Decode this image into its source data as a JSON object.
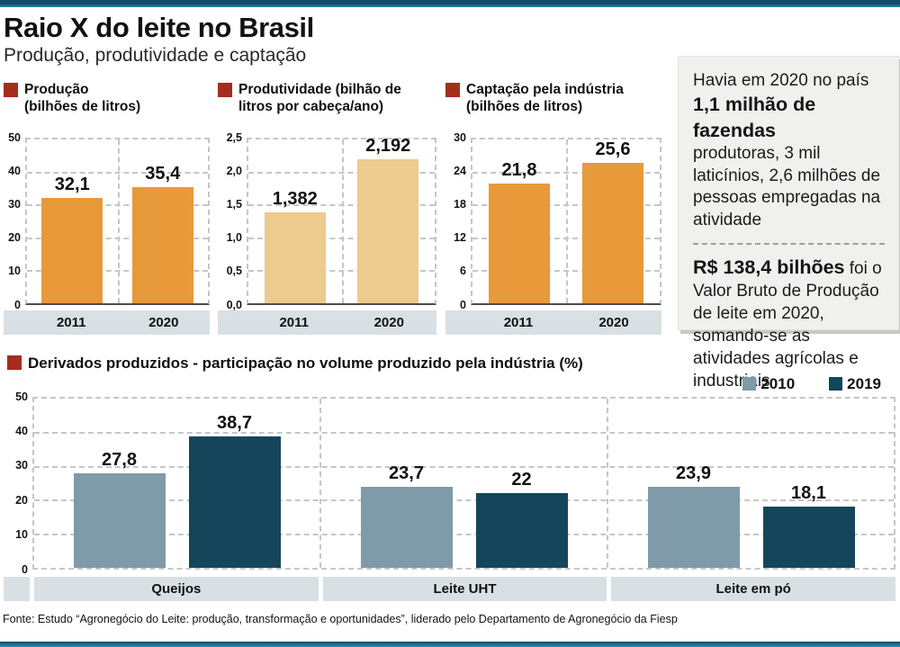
{
  "header": {
    "title": "Raio X do leite no Brasil",
    "subtitle": "Produção, produtividade e captação"
  },
  "colors": {
    "accent-red": "#a52d1d",
    "teal-dark": "#11506b",
    "teal-light": "#2d8fae",
    "band": "#d9e0e4",
    "grid": "#c3c7c9",
    "box-bg": "#f0f0ee",
    "orange": "#e8993a",
    "tan": "#edca8e",
    "slate-2010": "#7f9aa8",
    "navy-2019": "#15455b"
  },
  "chart_data": [
    {
      "type": "bar",
      "title": "Produção\n(bilhões de litros)",
      "categories": [
        "2011",
        "2020"
      ],
      "values": [
        32.1,
        35.4
      ],
      "value_labels": [
        "32,1",
        "35,4"
      ],
      "ylim": [
        0,
        50
      ],
      "yticks": [
        "50",
        "40",
        "30",
        "20",
        "10",
        "0"
      ],
      "bar_color": "#e8993a",
      "grid": true,
      "yaxis_width": 24
    },
    {
      "type": "bar",
      "title": "Produtividade (bilhão de\nlitros por cabeça/ano)",
      "categories": [
        "2011",
        "2020"
      ],
      "values": [
        1.382,
        2.192
      ],
      "value_labels": [
        "1,382",
        "2,192"
      ],
      "ylim": [
        0,
        2.5
      ],
      "yticks": [
        "2,5",
        "2,0",
        "1,5",
        "1,0",
        "0,5",
        "0,0"
      ],
      "bar_color": "#edca8e",
      "grid": true,
      "yaxis_width": 32
    },
    {
      "type": "bar",
      "title": "Captação pela indústria\n(bilhões de litros)",
      "categories": [
        "2011",
        "2020"
      ],
      "values": [
        21.8,
        25.6
      ],
      "value_labels": [
        "21,8",
        "25,6"
      ],
      "ylim": [
        0,
        30
      ],
      "yticks": [
        "30",
        "24",
        "18",
        "12",
        "6",
        "0"
      ],
      "bar_color": "#e8993a",
      "grid": true,
      "yaxis_width": 28
    },
    {
      "type": "bar",
      "title": "Derivados produzidos - participação no volume produzido pela indústria (%)",
      "categories": [
        "Queijos",
        "Leite UHT",
        "Leite em pó"
      ],
      "series": [
        {
          "name": "2010",
          "values": [
            27.8,
            23.7,
            23.9
          ],
          "labels": [
            "27,8",
            "23,7",
            "23,9"
          ],
          "color": "#7f9aa8"
        },
        {
          "name": "2019",
          "values": [
            38.7,
            22,
            18.1
          ],
          "labels": [
            "38,7",
            "22",
            "18,1"
          ],
          "color": "#15455b"
        }
      ],
      "ylim": [
        0,
        50
      ],
      "yticks": [
        "50",
        "40",
        "30",
        "20",
        "10",
        "0"
      ],
      "legend_position": "top-right",
      "grid": true
    }
  ],
  "sidebar": {
    "p1_intro": "Havia em 2020 no país",
    "p1_bold": "1,1 milhão de fazendas",
    "p1_rest": "produtoras, 3 mil laticínios, 2,6 milhões de pessoas empregadas na atividade",
    "p2_bold": "R$ 138,4 bilhões",
    "p2_rest": "foi o Valor Bruto de Produção de leite em 2020, somando-se as atividades agrícolas e industriais"
  },
  "footer": {
    "source": "Fonte: Estudo “Agronegócio do Leite: produção, transformação e oportunidades”, liderado pelo Departamento de Agronegócio da Fiesp"
  }
}
